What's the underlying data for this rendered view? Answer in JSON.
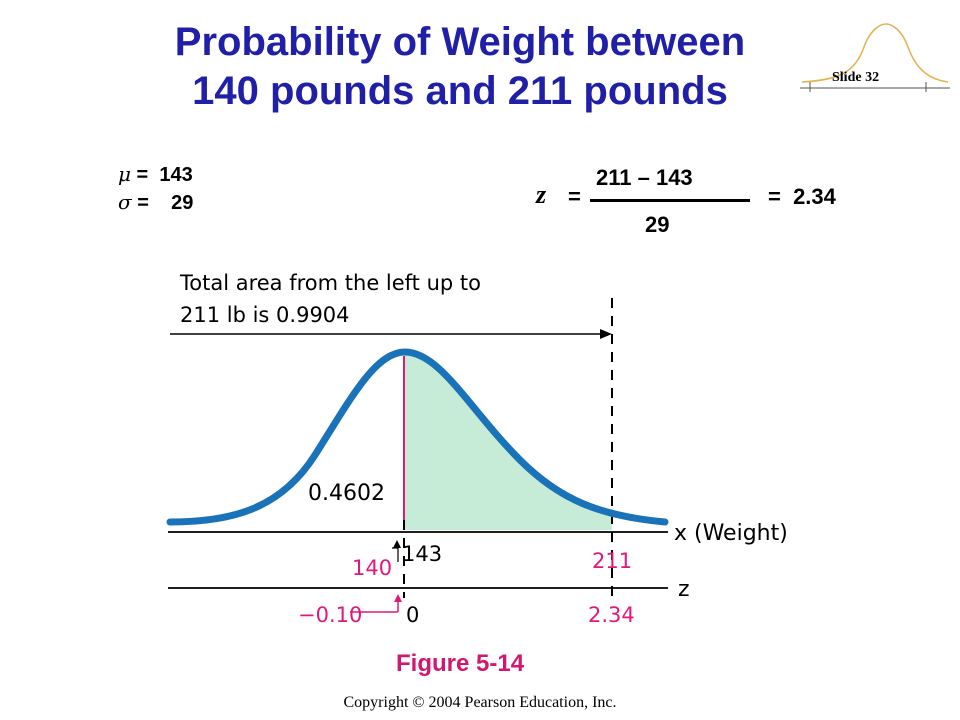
{
  "slide": {
    "title_line1": "Probability of Weight between",
    "title_line2": "140 pounds and 211 pounds",
    "slide_number": "Slide 32",
    "copyright": "Copyright © 2004 Pearson Education, Inc.",
    "figure_caption": "Figure 5-14"
  },
  "params": {
    "mu_symbol": "μ",
    "mu_text": " =  143",
    "sigma_symbol": "σ",
    "sigma_text": " =    29"
  },
  "formula": {
    "z_symbol": "z",
    "equals": "=",
    "numerator": "211 – 143",
    "denominator": "29",
    "result": "=  2.34"
  },
  "figure": {
    "annotation_line1": "Total area from the left up to",
    "annotation_line2": "211 lb is 0.9904",
    "area_label": "0.4602",
    "x_axis_label": "x (Weight)",
    "z_axis_label": "z",
    "x_tick_140": "140",
    "x_tick_143": "143",
    "x_tick_211": "211",
    "z_tick_neg": "−0.10",
    "z_tick_0": "0",
    "z_tick_234": "2.34",
    "colors": {
      "curve": "#1a73b8",
      "shaded": "#c6ebd6",
      "highlight": "#e0187a",
      "title": "#1f1fa8"
    }
  }
}
